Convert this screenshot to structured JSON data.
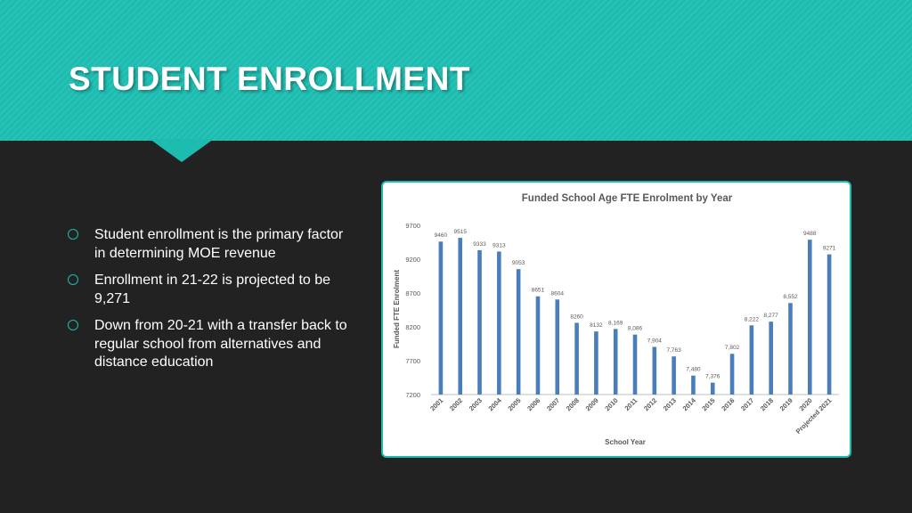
{
  "slide": {
    "title": "STUDENT ENROLLMENT",
    "bullets": [
      "Student enrollment is the primary factor in determining MOE revenue",
      "Enrollment in 21-22 is projected to be 9,271",
      "Down from 20-21 with a transfer back to regular school from alternatives and distance education"
    ],
    "colors": {
      "accent": "#1cbcb0",
      "background": "#222222",
      "bar": "#4a7ebb"
    }
  },
  "chart_data": {
    "type": "bar",
    "title": "Funded School Age FTE Enrolment by Year",
    "xlabel": "School Year",
    "ylabel": "Funded FTE Enrolment",
    "categories": [
      "2001",
      "2002",
      "2003",
      "2004",
      "2005",
      "2006",
      "2007",
      "2008",
      "2009",
      "2010",
      "2011",
      "2012",
      "2013",
      "2014",
      "2015",
      "2016",
      "2017",
      "2018",
      "2019",
      "2020",
      "Projected 2021"
    ],
    "values": [
      9460,
      9515,
      9333,
      9313,
      9053,
      8651,
      8604,
      8260,
      8132,
      8169,
      8086,
      7904,
      7763,
      7480,
      7376,
      7802,
      8222,
      8277,
      8552,
      9488,
      9271
    ],
    "data_labels": [
      "9460",
      "9515",
      "9333",
      "9313",
      "9053",
      "8651",
      "8604",
      "8260",
      "8132",
      "8,169",
      "8,086",
      "7,904",
      "7,763",
      "7,480",
      "7,376",
      "7,802",
      "8,222",
      "8,277",
      "8,552",
      "9488",
      "9271"
    ],
    "yticks": [
      "7200",
      "7700",
      "8200",
      "8700",
      "9200",
      "9700"
    ],
    "ylim": [
      7200,
      9700
    ],
    "grid": false,
    "legend": "none"
  }
}
